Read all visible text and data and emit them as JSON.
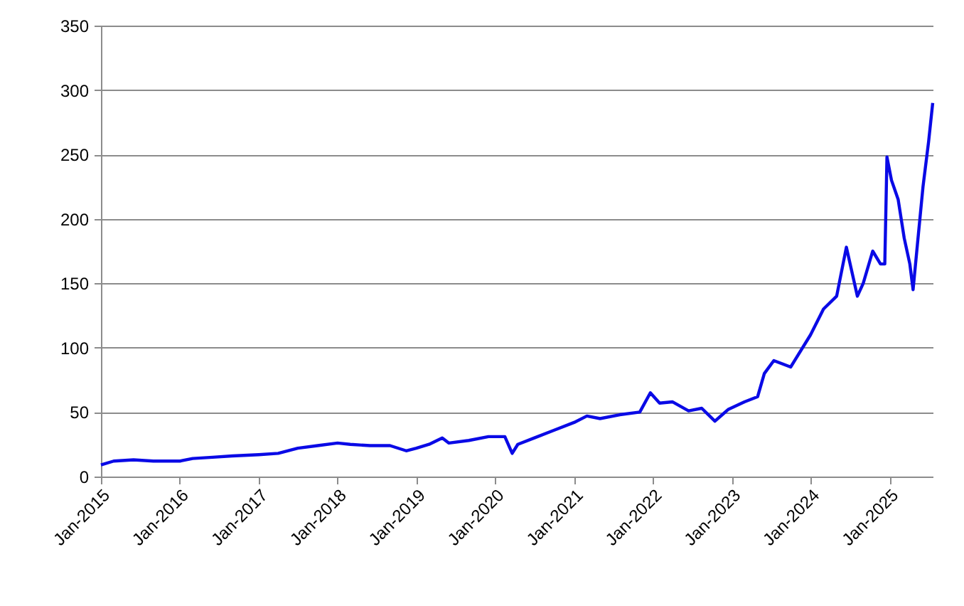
{
  "chart_data": {
    "type": "line",
    "x": [
      "2015-01-01",
      "2015-03-01",
      "2015-06-01",
      "2015-09-01",
      "2015-11-01",
      "2016-01-01",
      "2016-03-01",
      "2016-06-01",
      "2016-09-01",
      "2017-01-01",
      "2017-04-01",
      "2017-07-01",
      "2017-10-01",
      "2018-01-01",
      "2018-03-01",
      "2018-06-01",
      "2018-09-01",
      "2018-11-15",
      "2019-01-01",
      "2019-03-01",
      "2019-05-01",
      "2019-06-01",
      "2019-09-01",
      "2019-12-01",
      "2020-02-15",
      "2020-03-20",
      "2020-04-15",
      "2020-07-01",
      "2020-10-01",
      "2021-01-01",
      "2021-03-01",
      "2021-05-01",
      "2021-08-01",
      "2021-11-01",
      "2021-12-20",
      "2022-02-01",
      "2022-04-01",
      "2022-06-15",
      "2022-08-15",
      "2022-10-15",
      "2022-12-15",
      "2023-03-01",
      "2023-05-01",
      "2023-06-01",
      "2023-07-15",
      "2023-10-01",
      "2024-01-01",
      "2024-03-01",
      "2024-05-01",
      "2024-06-15",
      "2024-08-05",
      "2024-09-01",
      "2024-10-15",
      "2024-11-20",
      "2024-12-10",
      "2024-12-20",
      "2025-01-10",
      "2025-02-10",
      "2025-03-10",
      "2025-04-05",
      "2025-04-20",
      "2025-05-10",
      "2025-06-05",
      "2025-07-01",
      "2025-07-20"
    ],
    "series": [
      {
        "color": "#0a0ae6",
        "values": [
          9,
          12,
          13,
          12,
          12,
          12,
          14,
          15,
          16,
          17,
          18,
          22,
          24,
          26,
          25,
          24,
          24,
          20,
          22,
          25,
          30,
          26,
          28,
          31,
          31,
          18,
          25,
          30,
          36,
          42,
          47,
          45,
          48,
          50,
          65,
          57,
          58,
          51,
          53,
          43,
          52,
          58,
          62,
          80,
          90,
          85,
          110,
          130,
          140,
          178,
          140,
          150,
          175,
          165,
          165,
          248,
          230,
          215,
          185,
          165,
          145,
          180,
          225,
          260,
          290
        ]
      }
    ],
    "xlim": [
      "2015-01-01",
      "2025-07-20"
    ],
    "xticks": [
      {
        "value": "2015-01-01",
        "label": "Jan-2015"
      },
      {
        "value": "2016-01-01",
        "label": "Jan-2016"
      },
      {
        "value": "2017-01-01",
        "label": "Jan-2017"
      },
      {
        "value": "2018-01-01",
        "label": "Jan-2018"
      },
      {
        "value": "2019-01-01",
        "label": "Jan-2019"
      },
      {
        "value": "2020-01-01",
        "label": "Jan-2020"
      },
      {
        "value": "2021-01-01",
        "label": "Jan-2021"
      },
      {
        "value": "2022-01-01",
        "label": "Jan-2022"
      },
      {
        "value": "2023-01-01",
        "label": "Jan-2023"
      },
      {
        "value": "2024-01-01",
        "label": "Jan-2024"
      },
      {
        "value": "2025-01-01",
        "label": "Jan-2025"
      }
    ],
    "ylim": [
      0,
      350
    ],
    "yticks": [
      0,
      50,
      100,
      150,
      200,
      250,
      300,
      350
    ],
    "grid": "y"
  }
}
